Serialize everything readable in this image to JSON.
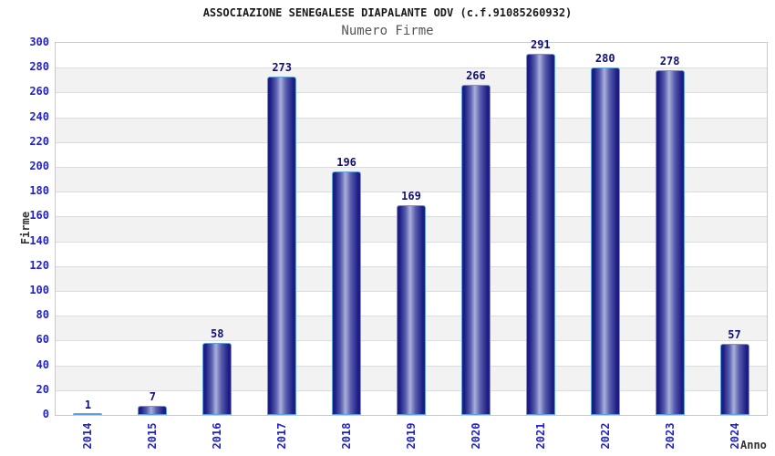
{
  "header": {
    "title": "ASSOCIAZIONE SENEGALESE DIAPALANTE ODV (c.f.91085260932)",
    "subtitle": "Numero Firme"
  },
  "chart_data": {
    "type": "bar",
    "title": "ASSOCIAZIONE SENEGALESE DIAPALANTE ODV (c.f.91085260932)",
    "subtitle": "Numero Firme",
    "categories": [
      "2014",
      "2015",
      "2016",
      "2017",
      "2018",
      "2019",
      "2020",
      "2021",
      "2022",
      "2023",
      "2024"
    ],
    "values": [
      1,
      7,
      58,
      273,
      196,
      169,
      266,
      291,
      280,
      278,
      57
    ],
    "xlabel": "Anno",
    "ylabel": "Firme",
    "ylim": [
      0,
      300
    ],
    "ytick_step": 20,
    "grid": true,
    "legend": false,
    "colors": {
      "axis_text": "#2222cc",
      "value_text": "#10107a",
      "bar_dark": "#1d1d84",
      "bar_mid": "#5a5fae",
      "bar_light": "#aab0dc",
      "bar_border": "#5fa0dc",
      "band_fill": "#f2f2f2",
      "gridline": "#dcdcdc",
      "plot_border": "#c9c9c9",
      "title_text": "#1a1a1a",
      "subtitle_text": "#555555",
      "axis_title_text": "#333333"
    }
  }
}
